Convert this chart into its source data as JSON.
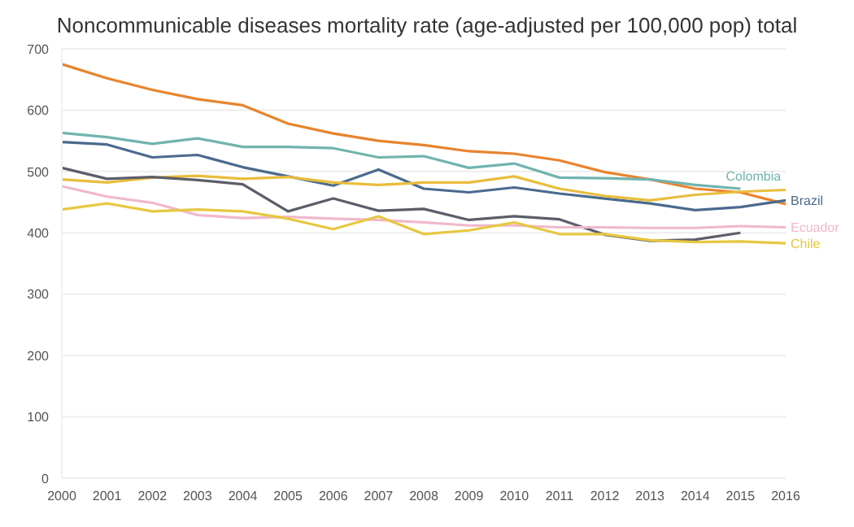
{
  "chart_data": {
    "type": "line",
    "title": "Noncommunicable diseases mortality rate (age-adjusted per 100,000 pop) total",
    "categories": [
      "2000",
      "2001",
      "2002",
      "2003",
      "2004",
      "2005",
      "2006",
      "2007",
      "2008",
      "2009",
      "2010",
      "2011",
      "2012",
      "2013",
      "2014",
      "2015",
      "2016"
    ],
    "series": [
      {
        "color": "#e8842c",
        "values": [
          675,
          652,
          633,
          618,
          608,
          578,
          562,
          550,
          543,
          533,
          529,
          518,
          499,
          487,
          472,
          466,
          447
        ]
      },
      {
        "name": "Colombia",
        "color": "#72b3ae",
        "values": [
          563,
          556,
          545,
          554,
          540,
          540,
          538,
          523,
          525,
          506,
          513,
          490,
          489,
          487,
          478,
          472,
          null
        ]
      },
      {
        "name": "Brazil",
        "color": "#4a6a8e",
        "values": [
          548,
          544,
          523,
          527,
          507,
          492,
          477,
          503,
          472,
          466,
          474,
          464,
          456,
          448,
          437,
          442,
          453
        ]
      },
      {
        "color": "#e9bd3c",
        "values": [
          487,
          482,
          490,
          493,
          488,
          491,
          482,
          478,
          482,
          482,
          492,
          472,
          460,
          453,
          462,
          467,
          470
        ]
      },
      {
        "color": "#5c5d6a",
        "values": [
          506,
          488,
          491,
          486,
          479,
          435,
          456,
          436,
          439,
          421,
          427,
          422,
          397,
          387,
          389,
          400,
          null
        ]
      },
      {
        "name": "Ecuador",
        "color": "#f0b8cb",
        "values": [
          476,
          459,
          449,
          429,
          424,
          426,
          423,
          421,
          417,
          412,
          412,
          409,
          409,
          408,
          408,
          411,
          409
        ]
      },
      {
        "name": "Chile",
        "color": "#e6c840",
        "values": [
          438,
          448,
          435,
          438,
          435,
          423,
          406,
          427,
          398,
          404,
          417,
          398,
          398,
          388,
          385,
          386,
          383
        ]
      }
    ],
    "ylim": [
      0,
      700
    ],
    "yticks": [
      0,
      100,
      200,
      300,
      400,
      500,
      600,
      700
    ],
    "grid": "y",
    "marker": "none",
    "line_style": "solid"
  }
}
